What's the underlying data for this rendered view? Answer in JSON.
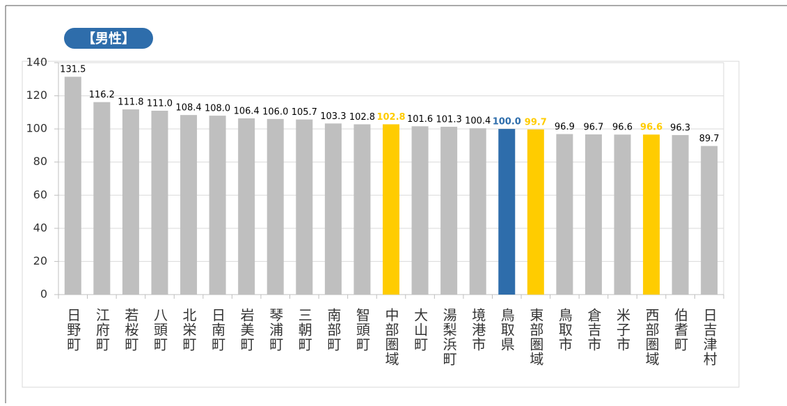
{
  "chart_data": {
    "type": "bar",
    "title": "【男性】",
    "categories": [
      "日野町",
      "江府町",
      "若桜町",
      "八頭町",
      "北栄町",
      "日南町",
      "岩美町",
      "琴浦町",
      "三朝町",
      "南部町",
      "智頭町",
      "中部圏域",
      "大山町",
      "湯梨浜町",
      "境港市",
      "鳥取県",
      "東部圏域",
      "鳥取市",
      "倉吉市",
      "米子市",
      "西部圏域",
      "伯耆町",
      "日吉津村"
    ],
    "values": [
      131.5,
      116.2,
      111.8,
      111.0,
      108.4,
      108.0,
      106.4,
      106.0,
      105.7,
      103.3,
      102.8,
      102.8,
      101.6,
      101.3,
      100.4,
      100.0,
      99.7,
      96.9,
      96.7,
      96.6,
      96.6,
      96.3,
      89.7
    ],
    "value_labels": [
      "131.5",
      "116.2",
      "111.8",
      "111.0",
      "108.4",
      "108.0",
      "106.4",
      "106.0",
      "105.7",
      "103.3",
      "102.8",
      "102.8",
      "101.6",
      "101.3",
      "100.4",
      "100.0",
      "99.7",
      "96.9",
      "96.7",
      "96.6",
      "96.6",
      "96.3",
      "89.7"
    ],
    "colors": [
      "#bfbfbf",
      "#bfbfbf",
      "#bfbfbf",
      "#bfbfbf",
      "#bfbfbf",
      "#bfbfbf",
      "#bfbfbf",
      "#bfbfbf",
      "#bfbfbf",
      "#bfbfbf",
      "#bfbfbf",
      "#ffcc00",
      "#bfbfbf",
      "#bfbfbf",
      "#bfbfbf",
      "#2e6dab",
      "#ffcc00",
      "#bfbfbf",
      "#bfbfbf",
      "#bfbfbf",
      "#ffcc00",
      "#bfbfbf",
      "#bfbfbf"
    ],
    "ylim": [
      0,
      140
    ],
    "yticks": [
      0,
      20,
      40,
      60,
      80,
      100,
      120,
      140
    ],
    "grid": true
  }
}
